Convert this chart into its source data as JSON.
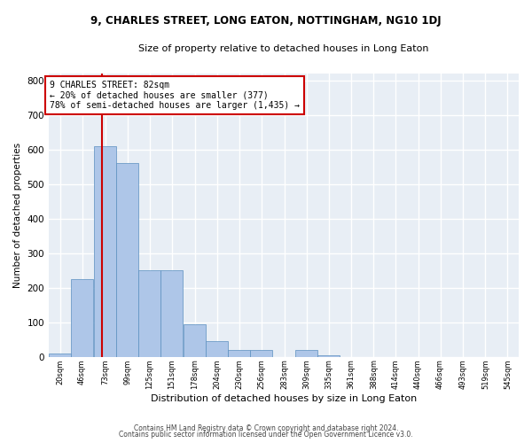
{
  "title_line1": "9, CHARLES STREET, LONG EATON, NOTTINGHAM, NG10 1DJ",
  "title_line2": "Size of property relative to detached houses in Long Eaton",
  "xlabel": "Distribution of detached houses by size in Long Eaton",
  "ylabel": "Number of detached properties",
  "bar_color": "#aec6e8",
  "bar_edge_color": "#5a8fc0",
  "background_color": "#e8eef5",
  "grid_color": "#ffffff",
  "categories": [
    "20sqm",
    "46sqm",
    "73sqm",
    "99sqm",
    "125sqm",
    "151sqm",
    "178sqm",
    "204sqm",
    "230sqm",
    "256sqm",
    "283sqm",
    "309sqm",
    "335sqm",
    "361sqm",
    "388sqm",
    "414sqm",
    "440sqm",
    "466sqm",
    "493sqm",
    "519sqm",
    "545sqm"
  ],
  "values": [
    10,
    225,
    610,
    560,
    250,
    250,
    95,
    45,
    20,
    20,
    0,
    20,
    5,
    0,
    0,
    0,
    0,
    0,
    0,
    0,
    0
  ],
  "bin_edges": [
    20,
    46,
    73,
    99,
    125,
    151,
    178,
    204,
    230,
    256,
    283,
    309,
    335,
    361,
    388,
    414,
    440,
    466,
    493,
    519,
    545
  ],
  "bin_width": 26,
  "red_line_x": 82,
  "annotation_text": "9 CHARLES STREET: 82sqm\n← 20% of detached houses are smaller (377)\n78% of semi-detached houses are larger (1,435) →",
  "annotation_box_color": "#ffffff",
  "annotation_box_edge": "#cc0000",
  "vline_color": "#cc0000",
  "ylim": [
    0,
    820
  ],
  "yticks": [
    0,
    100,
    200,
    300,
    400,
    500,
    600,
    700,
    800
  ],
  "footer_line1": "Contains HM Land Registry data © Crown copyright and database right 2024.",
  "footer_line2": "Contains public sector information licensed under the Open Government Licence v3.0."
}
